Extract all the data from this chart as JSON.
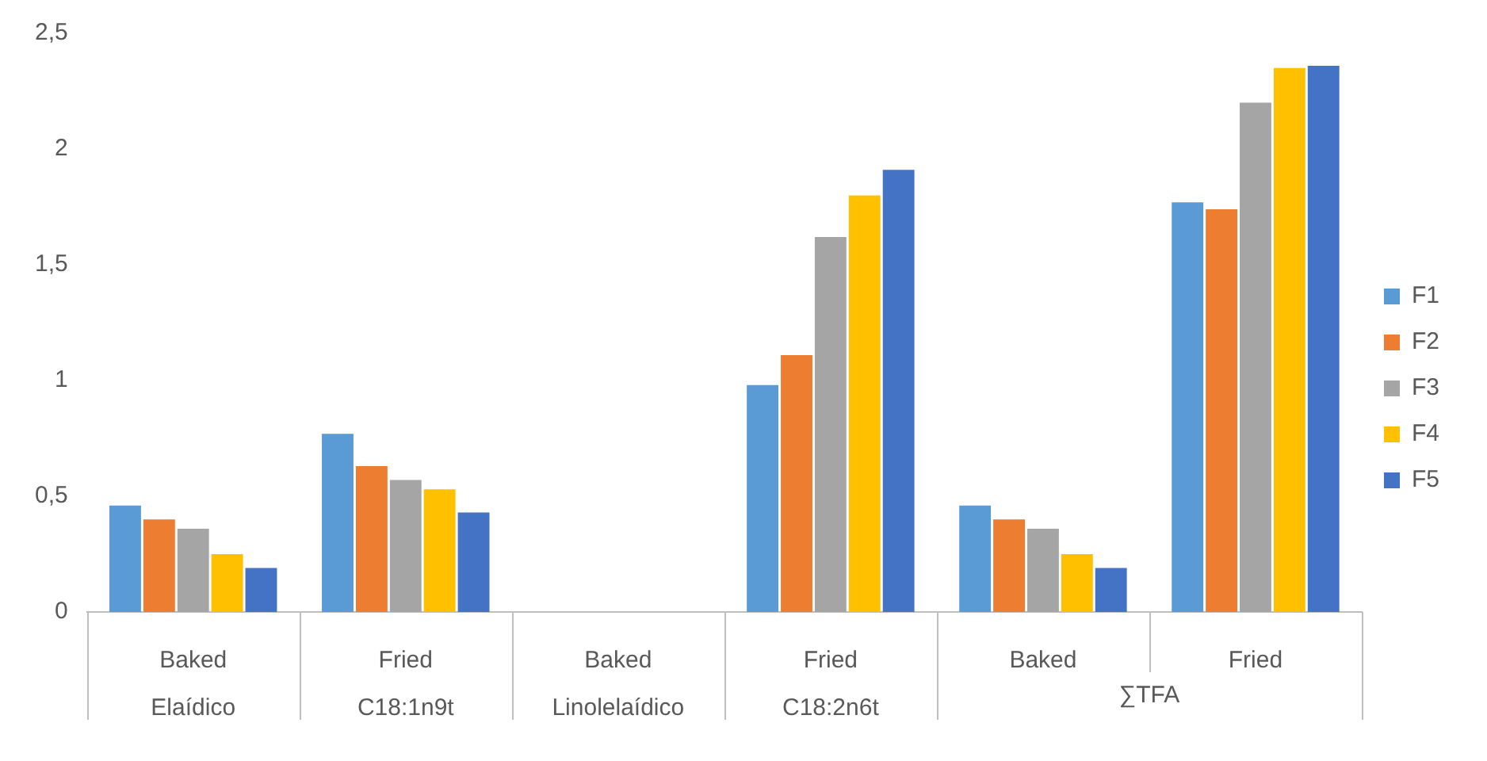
{
  "chart_data": {
    "type": "bar",
    "categories": [
      "Baked\nElaídico",
      "Fried\nC18:1n9t",
      "Baked\nLinolelaídico",
      "Fried\nC18:2n6t",
      "Baked",
      "Fried"
    ],
    "annotations": [
      "∑TFA"
    ],
    "series": [
      {
        "name": "F1",
        "color": "#5b9bd5",
        "values": [
          0.46,
          0.77,
          0,
          0.98,
          0.46,
          1.77
        ]
      },
      {
        "name": "F2",
        "color": "#ed7d31",
        "values": [
          0.4,
          0.63,
          0,
          1.11,
          0.4,
          1.74
        ]
      },
      {
        "name": "F3",
        "color": "#a5a5a5",
        "values": [
          0.36,
          0.57,
          0,
          1.62,
          0.36,
          2.2
        ]
      },
      {
        "name": "F4",
        "color": "#ffc000",
        "values": [
          0.25,
          0.53,
          0,
          1.8,
          0.25,
          2.35
        ]
      },
      {
        "name": "F5",
        "color": "#4472c4",
        "values": [
          0.19,
          0.43,
          0,
          1.91,
          0.19,
          2.36
        ]
      }
    ],
    "ylim": [
      0,
      2.5
    ],
    "yticks": [
      0,
      {
        "value": 0.5,
        "label": "0,5"
      },
      1,
      {
        "value": 1.5,
        "label": "1,5"
      },
      2,
      {
        "value": 2.5,
        "label": "2,5"
      }
    ],
    "grid": false,
    "legend": "right"
  }
}
